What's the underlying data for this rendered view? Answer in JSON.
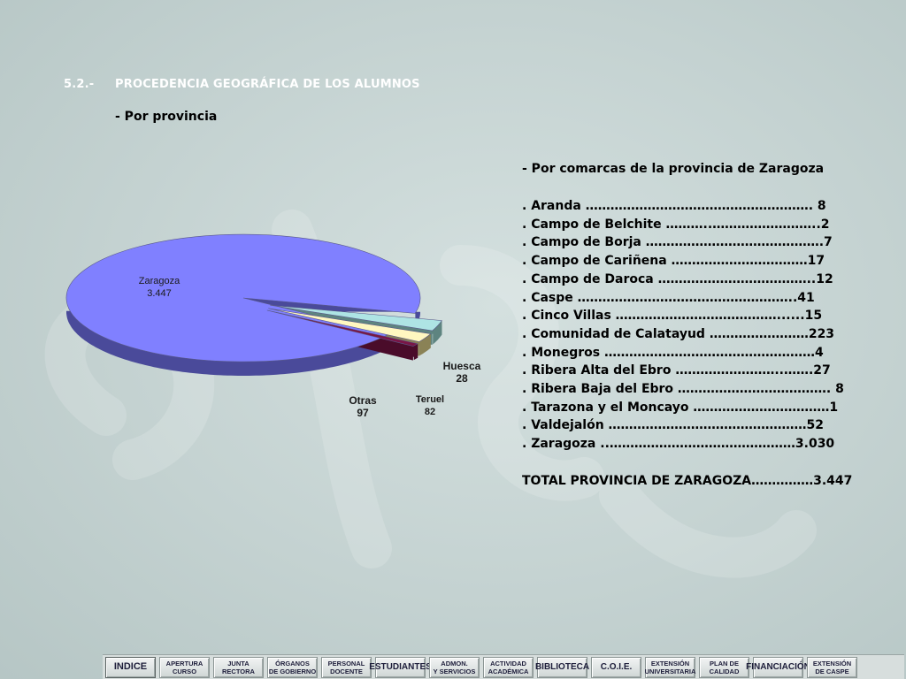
{
  "section": {
    "number": "5.2.-",
    "title": "PROCEDENCIA GEOGRÁFICA DE LOS ALUMNOS",
    "subtitle": "- Por provincia"
  },
  "chart_data": {
    "type": "pie",
    "categories": [
      "Zaragoza",
      "Otras",
      "Teruel",
      "Huesca"
    ],
    "values": [
      3447,
      97,
      82,
      28
    ],
    "value_labels": [
      "3.447",
      "97",
      "82",
      "28"
    ],
    "colors": [
      "#8080ff",
      "#aee4e4",
      "#fff7c0",
      "#7a1546"
    ],
    "side_colors": [
      "#4a4a9a",
      "#5e8480",
      "#8a8256",
      "#4a0c2a"
    ],
    "exploded": [
      "Otras",
      "Teruel",
      "Huesca"
    ],
    "legend": "labels on slices"
  },
  "comarcas": {
    "heading": "- Por comarcas de la provincia de Zaragoza",
    "items": [
      {
        "text": ". Aranda ………………………………………………. 8"
      },
      {
        "text": ". Campo de Belchite ………..……………………..2"
      },
      {
        "text": ". Campo de Borja …………………………………….7"
      },
      {
        "text": ". Campo de Cariñena ……………………………17"
      },
      {
        "text": ". Campo de Daroca ………………………………..12"
      },
      {
        "text": ". Caspe ……………………………………………..41"
      },
      {
        "text": ". Cinco Villas …………………………………......15"
      },
      {
        "text": ". Comunidad de Calatayud ……………………223"
      },
      {
        "text": ". Monegros ……………………………………………4"
      },
      {
        "text": ". Ribera Alta del Ebro ……………………..…….27"
      },
      {
        "text": ". Ribera Baja del Ebro ………………………………. 8"
      },
      {
        "text": ". Tarazona y el Moncayo ……………………………1"
      },
      {
        "text": ". Valdejalón …………………………………………52"
      },
      {
        "text": ". Zaragoza ..………………………………………3.030"
      }
    ],
    "total": "TOTAL PROVINCIA DE ZARAGOZA……………3.447"
  },
  "navbar": {
    "buttons": [
      {
        "label": "INDICE"
      },
      {
        "label": "APERTURA\nCURSO"
      },
      {
        "label": "JUNTA\nRECTORA"
      },
      {
        "label": "ÓRGANOS\nDE GOBIERNO"
      },
      {
        "label": "PERSONAL\nDOCENTE"
      },
      {
        "label": "ESTUDIANTES"
      },
      {
        "label": "ADMON.\nY SERVICIOS"
      },
      {
        "label": "ACTIVIDAD\nACADÉMICA"
      },
      {
        "label": "BIBLIOTECA"
      },
      {
        "label": "C.O.I.E."
      },
      {
        "label": "EXTENSIÓN\nUNIVERSITARIA"
      },
      {
        "label": "PLAN DE CALIDAD"
      },
      {
        "label": "FINANCIACIÓN"
      },
      {
        "label": "EXTENSIÓN\nDE CASPE"
      }
    ]
  }
}
